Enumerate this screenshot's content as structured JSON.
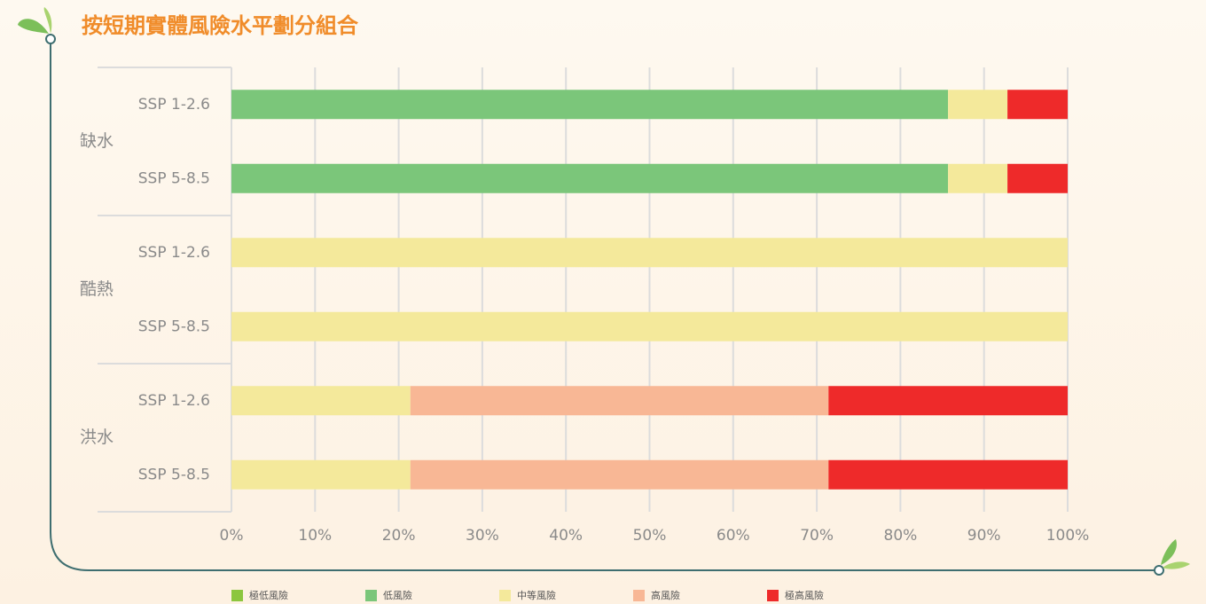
{
  "chart_data": {
    "type": "stacked-barh",
    "title": "按短期實體風險水平劃分組合",
    "groups": [
      {
        "name": "缺水",
        "categories": [
          "SSP 1-2.6",
          "SSP 5-8.5"
        ]
      },
      {
        "name": "酷熱",
        "categories": [
          "SSP 1-2.6",
          "SSP 5-8.5"
        ]
      },
      {
        "name": "洪水",
        "categories": [
          "SSP 1-2.6",
          "SSP 5-8.5"
        ]
      }
    ],
    "series": [
      {
        "name": "極低風險",
        "color": "#8cc63e",
        "values": [
          0,
          0,
          0,
          0,
          0,
          0
        ]
      },
      {
        "name": "低風險",
        "color": "#7bc67a",
        "values": [
          85.7,
          85.7,
          0,
          0,
          0,
          0
        ]
      },
      {
        "name": "中等風險",
        "color": "#f4e99b",
        "values": [
          7.1,
          7.1,
          100,
          100,
          21.4,
          21.4
        ]
      },
      {
        "name": "高風險",
        "color": "#f8b795",
        "values": [
          0,
          0,
          0,
          0,
          50,
          50
        ]
      },
      {
        "name": "極高風險",
        "color": "#ee2a2a",
        "values": [
          7.2,
          7.2,
          0,
          0,
          28.6,
          28.6
        ]
      }
    ],
    "xlim": [
      0,
      100
    ],
    "xticks": [
      {
        "value": 0,
        "label": "0%"
      },
      {
        "value": 10,
        "label": "10%"
      },
      {
        "value": 20,
        "label": "20%"
      },
      {
        "value": 30,
        "label": "30%"
      },
      {
        "value": 40,
        "label": "40%"
      },
      {
        "value": 50,
        "label": "50%"
      },
      {
        "value": 60,
        "label": "60%"
      },
      {
        "value": 70,
        "label": "70%"
      },
      {
        "value": 80,
        "label": "80%"
      },
      {
        "value": 90,
        "label": "90%"
      },
      {
        "value": 100,
        "label": "100%"
      }
    ],
    "grid": true
  }
}
